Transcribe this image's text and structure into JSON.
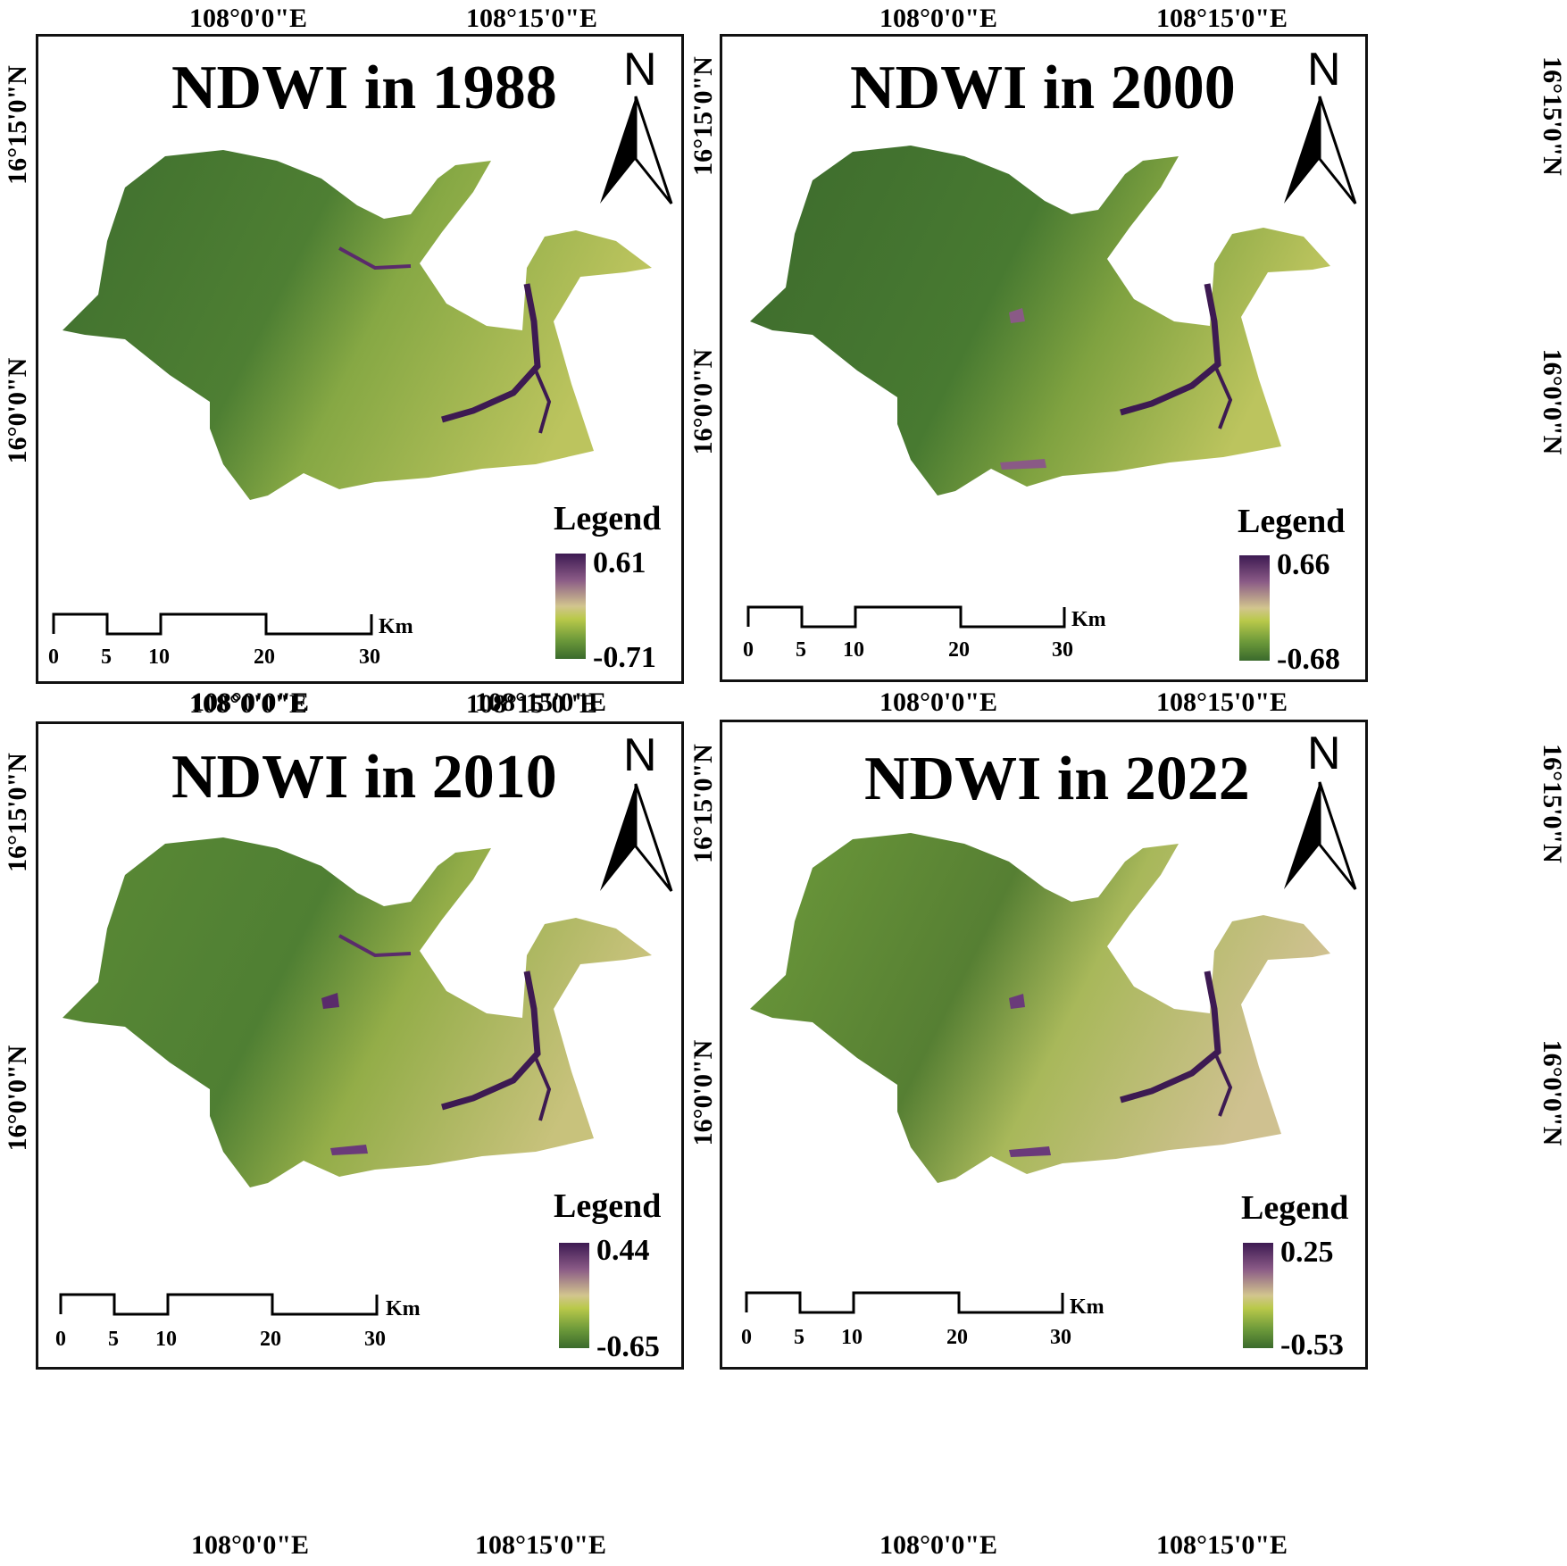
{
  "panels": [
    {
      "title": "NDWI in 1988",
      "legend_title": "Legend",
      "legend_max": "0.61",
      "legend_min": "-0.71",
      "north": "N",
      "lon_labels": [
        "108°0'0\"E",
        "108°15'0\"E"
      ],
      "lat_labels": [
        "16°15'0\"N",
        "16°0'0\"N"
      ],
      "scale_unit": "Km",
      "scale_ticks": [
        "0",
        "5",
        "10",
        "20",
        "30"
      ]
    },
    {
      "title": "NDWI in 2000",
      "legend_title": "Legend",
      "legend_max": "0.66",
      "legend_min": "-0.68",
      "north": "N",
      "lon_labels": [
        "108°0'0\"E",
        "108°15'0\"E"
      ],
      "lat_labels": [
        "16°15'0\"N",
        "16°0'0\"N"
      ],
      "scale_unit": "Km",
      "scale_ticks": [
        "0",
        "5",
        "10",
        "20",
        "30"
      ]
    },
    {
      "title": "NDWI in 2010",
      "legend_title": "Legend",
      "legend_max": "0.44",
      "legend_min": "-0.65",
      "north": "N",
      "lon_labels": [
        "108°0'0\"E",
        "108°15'0\"E"
      ],
      "lat_labels": [
        "16°15'0\"N",
        "16°0'0\"N"
      ],
      "scale_unit": "Km",
      "scale_ticks": [
        "0",
        "5",
        "10",
        "20",
        "30"
      ]
    },
    {
      "title": "NDWI in 2022",
      "legend_title": "Legend",
      "legend_max": "0.25",
      "legend_min": "-0.53",
      "north": "N",
      "lon_labels": [
        "108°0'0\"E",
        "108°15'0\"E"
      ],
      "lat_labels": [
        "16°15'0\"N",
        "16°0'0\"N"
      ],
      "scale_unit": "Km",
      "scale_ticks": [
        "0",
        "5",
        "10",
        "20",
        "30"
      ]
    }
  ],
  "colors": {
    "forest_dark": "#3b6a2c",
    "vegetation": "#6f9a3a",
    "urban": "#c8c27c",
    "water": "#3d1a52"
  }
}
